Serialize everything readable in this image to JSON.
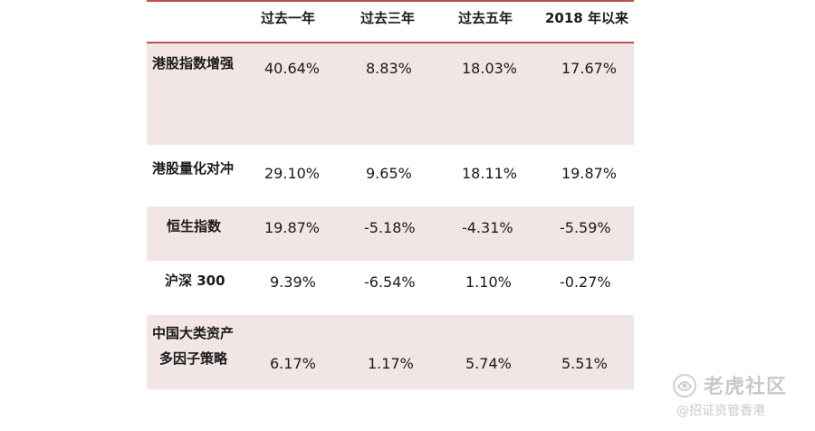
{
  "table": {
    "headers": [
      "",
      "过去一年",
      "过去三年",
      "过去五年",
      "2018 年以来"
    ],
    "rows": [
      {
        "name": "港股指数增强",
        "name2": "",
        "values": [
          "40.64%",
          "8.83%",
          "18.03%",
          "17.67%"
        ]
      },
      {
        "name": "港股量化对冲",
        "name2": "",
        "values": [
          "29.10%",
          "9.65%",
          "18.11%",
          "19.87%"
        ]
      },
      {
        "name": "恒生指数",
        "name2": "",
        "values": [
          "19.87%",
          "-5.18%",
          "-4.31%",
          "-5.59%"
        ]
      },
      {
        "name": "沪深 300",
        "name2": "",
        "values": [
          "9.39%",
          "-6.54%",
          "1.10%",
          "-0.27%"
        ]
      },
      {
        "name": "中国大类资产",
        "name2": "多因子策略",
        "values": [
          "6.17%",
          "1.17%",
          "5.74%",
          "5.51%"
        ]
      }
    ]
  },
  "watermark": {
    "brand": "老虎社区",
    "sub": "@招证资管香港"
  }
}
